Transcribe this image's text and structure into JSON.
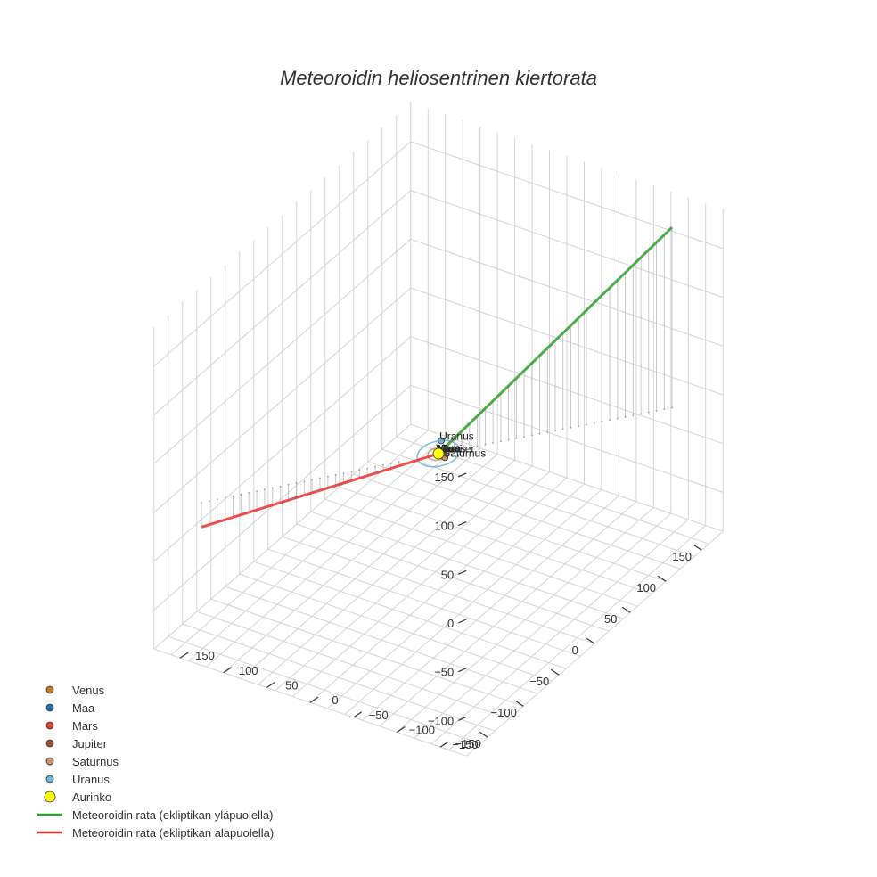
{
  "chart_data": {
    "type": "line3d",
    "title": "Meteoroidin heliosentrinen kiertorata",
    "axes": {
      "x": {
        "range": [
          -180,
          180
        ],
        "ticks": [
          -150,
          -100,
          -50,
          0,
          50,
          100,
          150
        ]
      },
      "y": {
        "range": [
          -180,
          180
        ],
        "ticks": [
          -150,
          -100,
          -50,
          0,
          50,
          100,
          150
        ]
      },
      "z": {
        "range": [
          -140,
          190
        ],
        "ticks": [
          -100,
          -50,
          0,
          50,
          100,
          150
        ]
      }
    },
    "grid": true,
    "legend_position": "bottom-left",
    "bodies": [
      {
        "name": "Venus",
        "x": 0.7,
        "y": 0.1,
        "z": 0,
        "color": "#c87a19",
        "label_on_plot": true
      },
      {
        "name": "Maa",
        "x": -0.6,
        "y": 0.7,
        "z": 0,
        "color": "#1f77b4",
        "label_on_plot": true
      },
      {
        "name": "Mars",
        "x": 1.2,
        "y": 0.9,
        "z": 0,
        "color": "#d64527",
        "label_on_plot": true
      },
      {
        "name": "Jupiter",
        "x": -4.5,
        "y": 2.5,
        "z": 0,
        "color": "#a0522d",
        "label_on_plot": true
      },
      {
        "name": "Saturnus",
        "x": -9.0,
        "y": -2.0,
        "z": 0,
        "color": "#c8936a",
        "label_on_plot": true
      },
      {
        "name": "Uranus",
        "x": 10.0,
        "y": 16.0,
        "z": 0,
        "color": "#6cb7d6",
        "label_on_plot": true
      },
      {
        "name": "Aurinko",
        "x": 0,
        "y": 0,
        "z": 0,
        "color": "#ffff00",
        "label_on_plot": false
      }
    ],
    "series": [
      {
        "name": "Meteoroidin rata (ekliptikan yläpuolella)",
        "color": "#2ca02c",
        "start": [
          -150,
          145,
          185
        ],
        "end": [
          0,
          0,
          0
        ]
      },
      {
        "name": "Meteoroidin rata (ekliptikan alapuolella)",
        "color": "#e8322d",
        "start": [
          0,
          0,
          0
        ],
        "end": [
          150,
          -150,
          -25
        ]
      }
    ],
    "orbits": [
      {
        "name": "Saturnus",
        "radius": 9.5,
        "color": "#c8936a"
      },
      {
        "name": "Uranus",
        "radius": 19,
        "color": "#6cb7d6"
      }
    ]
  }
}
